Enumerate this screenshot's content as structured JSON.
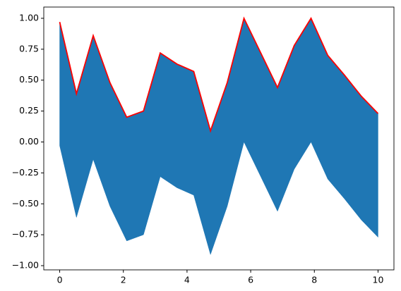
{
  "chart_data": {
    "type": "fill_between",
    "x": [
      0,
      0.526,
      1.053,
      1.579,
      2.105,
      2.632,
      3.158,
      3.684,
      4.211,
      4.737,
      5.263,
      5.789,
      6.316,
      6.842,
      7.368,
      7.895,
      8.421,
      8.947,
      9.474,
      10
    ],
    "y1": [
      0.97,
      0.39,
      0.86,
      0.48,
      0.2,
      0.25,
      0.72,
      0.63,
      0.57,
      0.09,
      0.48,
      1.0,
      0.72,
      0.44,
      0.78,
      1.0,
      0.7,
      0.54,
      0.37,
      0.23
    ],
    "y2": [
      -0.03,
      -0.61,
      -0.14,
      -0.52,
      -0.8,
      -0.75,
      -0.28,
      -0.37,
      -0.43,
      -0.91,
      -0.52,
      0.0,
      -0.28,
      -0.56,
      -0.22,
      0.0,
      -0.3,
      -0.46,
      -0.63,
      -0.77
    ],
    "fill_color": "#1f77b4",
    "line_color": "#ff0000",
    "xlim": [
      -0.5,
      10.5
    ],
    "ylim": [
      -1.034,
      1.091
    ],
    "xticks": [
      0,
      2,
      4,
      6,
      8,
      10
    ],
    "yticks": [
      {
        "value": -1.0,
        "label": "−1.00"
      },
      {
        "value": -0.75,
        "label": "−0.75"
      },
      {
        "value": -0.5,
        "label": "−0.50"
      },
      {
        "value": -0.25,
        "label": "−0.25"
      },
      {
        "value": 0.0,
        "label": "0.00"
      },
      {
        "value": 0.25,
        "label": "0.25"
      },
      {
        "value": 0.5,
        "label": "0.50"
      },
      {
        "value": 0.75,
        "label": "0.75"
      },
      {
        "value": 1.0,
        "label": "1.00"
      }
    ]
  }
}
